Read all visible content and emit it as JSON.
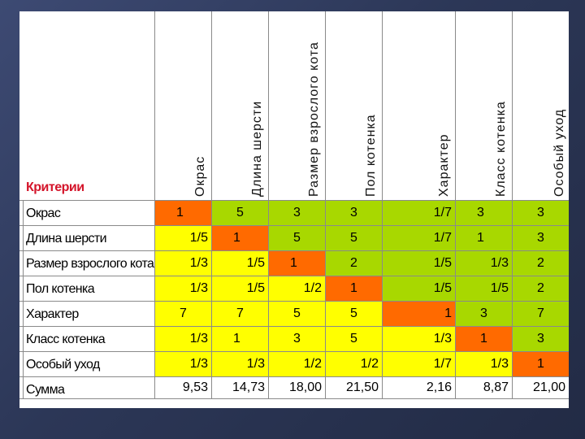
{
  "criteria_label": "Критерии",
  "columns": [
    "Окрас",
    "Длина шерсти",
    "Размер взрослого кота",
    "Пол котенка",
    "Характер",
    "Класс котенка",
    "Особый уход"
  ],
  "rows": [
    {
      "name": "Окрас",
      "cells": [
        {
          "v": "1",
          "c": "orange",
          "a": "l"
        },
        {
          "v": "5",
          "c": "green",
          "a": "c"
        },
        {
          "v": "3",
          "c": "green",
          "a": "c"
        },
        {
          "v": "3",
          "c": "green",
          "a": "c"
        },
        {
          "v": "1/7",
          "c": "green",
          "a": "r"
        },
        {
          "v": "3",
          "c": "green",
          "a": "l"
        },
        {
          "v": "3",
          "c": "green",
          "a": "c"
        }
      ]
    },
    {
      "name": "Длина шерсти",
      "cells": [
        {
          "v": "1/5",
          "c": "yellow",
          "a": "r"
        },
        {
          "v": "1",
          "c": "orange",
          "a": "l"
        },
        {
          "v": "5",
          "c": "green",
          "a": "c"
        },
        {
          "v": "5",
          "c": "green",
          "a": "c"
        },
        {
          "v": "1/7",
          "c": "green",
          "a": "r"
        },
        {
          "v": "1",
          "c": "green",
          "a": "l"
        },
        {
          "v": "3",
          "c": "green",
          "a": "c"
        }
      ]
    },
    {
      "name": "Размер взрослого кота",
      "cells": [
        {
          "v": "1/3",
          "c": "yellow",
          "a": "r"
        },
        {
          "v": "1/5",
          "c": "yellow",
          "a": "r"
        },
        {
          "v": "1",
          "c": "orange",
          "a": "l"
        },
        {
          "v": "2",
          "c": "green",
          "a": "c"
        },
        {
          "v": "1/5",
          "c": "green",
          "a": "r"
        },
        {
          "v": "1/3",
          "c": "green",
          "a": "r"
        },
        {
          "v": "2",
          "c": "green",
          "a": "c"
        }
      ]
    },
    {
      "name": "Пол котенка",
      "cells": [
        {
          "v": "1/3",
          "c": "yellow",
          "a": "r"
        },
        {
          "v": "1/5",
          "c": "yellow",
          "a": "r"
        },
        {
          "v": "1/2",
          "c": "yellow",
          "a": "r"
        },
        {
          "v": "1",
          "c": "orange",
          "a": "c"
        },
        {
          "v": "1/5",
          "c": "green",
          "a": "r"
        },
        {
          "v": "1/5",
          "c": "green",
          "a": "r"
        },
        {
          "v": "2",
          "c": "green",
          "a": "c"
        }
      ]
    },
    {
      "name": "Характер",
      "cells": [
        {
          "v": "7",
          "c": "yellow",
          "a": "c"
        },
        {
          "v": "7",
          "c": "yellow",
          "a": "c"
        },
        {
          "v": "5",
          "c": "yellow",
          "a": "c"
        },
        {
          "v": "5",
          "c": "yellow",
          "a": "c"
        },
        {
          "v": "1",
          "c": "orange",
          "a": "r"
        },
        {
          "v": "3",
          "c": "green",
          "a": "c"
        },
        {
          "v": "7",
          "c": "green",
          "a": "c"
        }
      ]
    },
    {
      "name": "Класс котенка",
      "cells": [
        {
          "v": "1/3",
          "c": "yellow",
          "a": "r"
        },
        {
          "v": "1",
          "c": "yellow",
          "a": "l"
        },
        {
          "v": "3",
          "c": "yellow",
          "a": "c"
        },
        {
          "v": "5",
          "c": "yellow",
          "a": "c"
        },
        {
          "v": "1/3",
          "c": "yellow",
          "a": "r"
        },
        {
          "v": "1",
          "c": "orange",
          "a": "c"
        },
        {
          "v": "3",
          "c": "green",
          "a": "c"
        }
      ]
    },
    {
      "name": "Особый уход",
      "cells": [
        {
          "v": "1/3",
          "c": "yellow",
          "a": "r"
        },
        {
          "v": "1/3",
          "c": "yellow",
          "a": "r"
        },
        {
          "v": "1/2",
          "c": "yellow",
          "a": "r"
        },
        {
          "v": "1/2",
          "c": "yellow",
          "a": "r"
        },
        {
          "v": "1/7",
          "c": "yellow",
          "a": "r"
        },
        {
          "v": "1/3",
          "c": "yellow",
          "a": "r"
        },
        {
          "v": "1",
          "c": "orange",
          "a": "c"
        }
      ]
    },
    {
      "name": "Сумма",
      "cells": [
        {
          "v": "9,53",
          "c": "white",
          "a": "r"
        },
        {
          "v": "14,73",
          "c": "white",
          "a": "r"
        },
        {
          "v": "18,00",
          "c": "white",
          "a": "r"
        },
        {
          "v": "21,50",
          "c": "white",
          "a": "r"
        },
        {
          "v": "2,16",
          "c": "white",
          "a": "r"
        },
        {
          "v": "8,87",
          "c": "white",
          "a": "r"
        },
        {
          "v": "21,00",
          "c": "white",
          "a": "r"
        }
      ]
    }
  ]
}
